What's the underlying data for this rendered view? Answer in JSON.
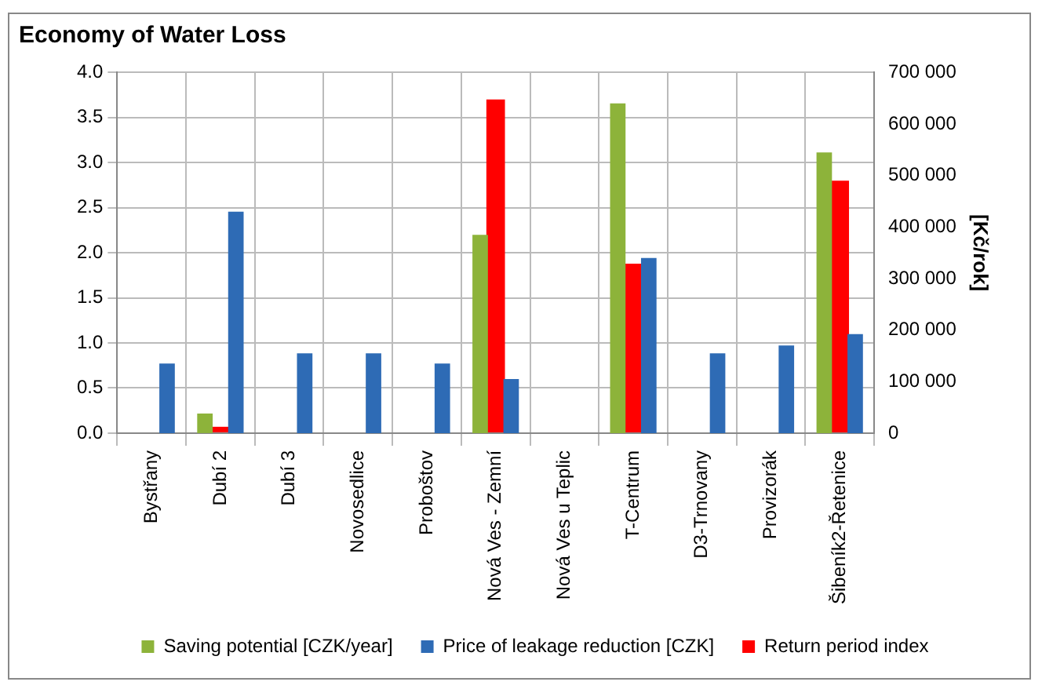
{
  "chart_data": {
    "type": "bar",
    "title": "Economy of Water Loss",
    "y2label": "[Kč/rok]",
    "categories": [
      "Bystřany",
      "Dubí 2",
      "Dubí 3",
      "Novosedlice",
      "Proboštov",
      "Nová Ves - Zemní",
      "Nová Ves u Teplic",
      "T-Centrum",
      "D3-Trnovany",
      "Provizorák",
      "Šibeník2-Řetenice"
    ],
    "series": [
      {
        "name": "Return period index",
        "color": "#ff0000",
        "values": [
          null,
          0.07,
          null,
          null,
          null,
          3.7,
          null,
          1.88,
          null,
          null,
          2.8
        ]
      },
      {
        "name": "Saving potential [CZK/year]",
        "color": "#8db33a",
        "axis": "y2",
        "values": [
          null,
          38000,
          null,
          null,
          null,
          385000,
          null,
          640000,
          null,
          null,
          545000
        ]
      },
      {
        "name": "Price of leakage reduction [CZK]",
        "color": "#2e6bb5",
        "axis": "y2",
        "values": [
          135000,
          430000,
          155000,
          155000,
          135000,
          105000,
          null,
          340000,
          155000,
          170000,
          192000
        ]
      }
    ],
    "ylim": [
      0,
      4
    ],
    "yticks": [
      {
        "value": 0,
        "label": "0.0"
      },
      {
        "value": 0.5,
        "label": "0.5"
      },
      {
        "value": 1,
        "label": "1.0"
      },
      {
        "value": 1.5,
        "label": "1.5"
      },
      {
        "value": 2,
        "label": "2.0"
      },
      {
        "value": 2.5,
        "label": "2.5"
      },
      {
        "value": 3,
        "label": "3.0"
      },
      {
        "value": 3.5,
        "label": "3.5"
      },
      {
        "value": 4,
        "label": "4.0"
      }
    ],
    "y2lim": [
      0,
      700000
    ],
    "y2ticks": [
      0,
      {
        "value": 100000,
        "label": "100 000"
      },
      {
        "value": 200000,
        "label": "200 000"
      },
      {
        "value": 300000,
        "label": "300 000"
      },
      {
        "value": 400000,
        "label": "400 000"
      },
      {
        "value": 500000,
        "label": "500 000"
      },
      {
        "value": 600000,
        "label": "600 000"
      },
      {
        "value": 700000,
        "label": "700 000"
      }
    ],
    "grid": true,
    "legend": "bottom"
  }
}
